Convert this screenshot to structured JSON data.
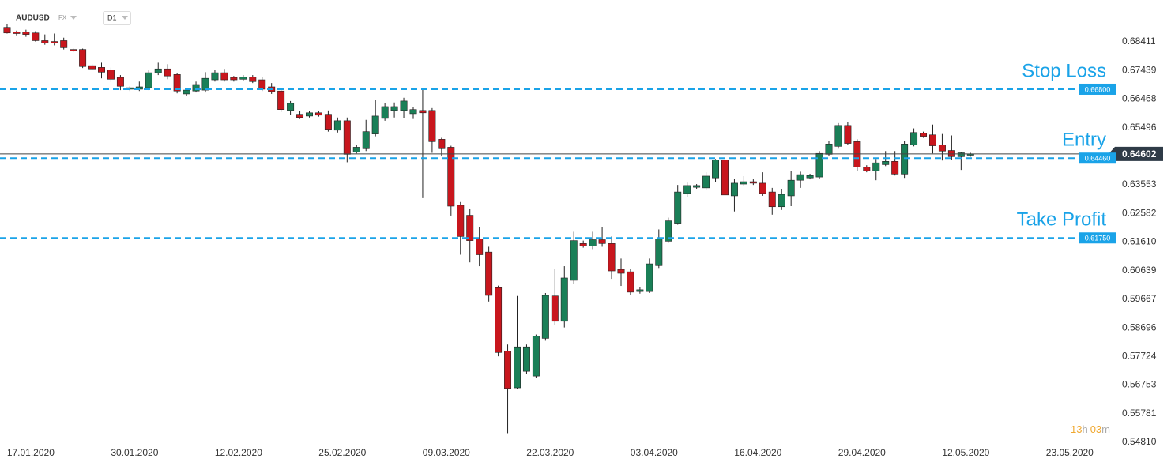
{
  "header": {
    "symbol": "AUDUSD",
    "market": "FX",
    "timeframe": "D1"
  },
  "chart_data": {
    "type": "candlestick",
    "open": [
      0.689,
      0.6874,
      0.6874,
      0.6871,
      0.6845,
      0.6842,
      0.6845,
      0.6815,
      0.6815,
      0.676,
      0.6754,
      0.6746,
      0.672,
      0.668,
      0.668,
      0.6685,
      0.6736,
      0.6749,
      0.673,
      0.6664,
      0.6674,
      0.6677,
      0.6712,
      0.6736,
      0.672,
      0.6714,
      0.6722,
      0.6712,
      0.6688,
      0.6674,
      0.6608,
      0.6595,
      0.6589,
      0.66,
      0.6595,
      0.6541,
      0.6573,
      0.6467,
      0.6478,
      0.6528,
      0.6581,
      0.6608,
      0.6608,
      0.6597,
      0.6608,
      0.6608,
      0.651,
      0.6483,
      0.6286,
      0.6252,
      0.6172,
      0.6127,
      0.6006,
      0.5791,
      0.5666,
      0.5722,
      0.5706,
      0.5834,
      0.5978,
      0.5892,
      0.6031,
      0.6156,
      0.6148,
      0.6169,
      0.6156,
      0.6068,
      0.606,
      0.5993,
      0.5993,
      0.6081,
      0.6164,
      0.6225,
      0.6326,
      0.6347,
      0.6345,
      0.6379,
      0.644,
      0.6318,
      0.6358,
      0.6366,
      0.6361,
      0.6331,
      0.6281,
      0.6318,
      0.6371,
      0.6379,
      0.6382,
      0.6459,
      0.6486,
      0.6557,
      0.6502,
      0.6416,
      0.6403,
      0.6424,
      0.6435,
      0.6392,
      0.6491,
      0.6531,
      0.6525,
      0.6491,
      0.6472,
      0.6451,
      0.6456
    ],
    "high": [
      0.6901,
      0.6879,
      0.6882,
      0.6877,
      0.6866,
      0.6869,
      0.6855,
      0.6818,
      0.6818,
      0.6765,
      0.677,
      0.6754,
      0.6728,
      0.669,
      0.6706,
      0.6744,
      0.677,
      0.6765,
      0.6736,
      0.6682,
      0.6706,
      0.6738,
      0.6746,
      0.6749,
      0.6725,
      0.6728,
      0.6728,
      0.6722,
      0.6701,
      0.6682,
      0.664,
      0.6605,
      0.6605,
      0.6605,
      0.6608,
      0.6584,
      0.6584,
      0.6491,
      0.6576,
      0.6643,
      0.6632,
      0.6635,
      0.6651,
      0.6619,
      0.6682,
      0.6616,
      0.6515,
      0.6488,
      0.6297,
      0.6275,
      0.6212,
      0.6145,
      0.6013,
      0.5813,
      0.5978,
      0.5813,
      0.5847,
      0.5988,
      0.6071,
      0.6079,
      0.6196,
      0.6166,
      0.6196,
      0.6212,
      0.618,
      0.6105,
      0.6071,
      0.6009,
      0.6105,
      0.6204,
      0.6244,
      0.6355,
      0.6363,
      0.6358,
      0.6398,
      0.6443,
      0.6443,
      0.6376,
      0.6385,
      0.6374,
      0.6398,
      0.6345,
      0.6342,
      0.6403,
      0.64,
      0.6393,
      0.647,
      0.6504,
      0.6565,
      0.6568,
      0.651,
      0.6422,
      0.6443,
      0.647,
      0.647,
      0.6504,
      0.6547,
      0.6536,
      0.656,
      0.6528,
      0.6523,
      0.6467,
      0.6464
    ],
    "low": [
      0.6869,
      0.6863,
      0.6858,
      0.6842,
      0.6831,
      0.6829,
      0.6815,
      0.6807,
      0.6752,
      0.6744,
      0.6717,
      0.6704,
      0.6677,
      0.6674,
      0.6674,
      0.6677,
      0.6728,
      0.6714,
      0.6666,
      0.6658,
      0.6669,
      0.6669,
      0.6706,
      0.6706,
      0.6706,
      0.6709,
      0.6701,
      0.6674,
      0.6664,
      0.6603,
      0.6592,
      0.6579,
      0.6584,
      0.6587,
      0.6536,
      0.6533,
      0.6432,
      0.6462,
      0.647,
      0.652,
      0.6573,
      0.6584,
      0.6581,
      0.6579,
      0.631,
      0.6464,
      0.6454,
      0.6251,
      0.6118,
      0.6092,
      0.6079,
      0.5959,
      0.5773,
      0.5512,
      0.5661,
      0.5712,
      0.5701,
      0.5826,
      0.5879,
      0.5871,
      0.602,
      0.6142,
      0.6137,
      0.6145,
      0.6036,
      0.6012,
      0.598,
      0.5986,
      0.5988,
      0.6073,
      0.6158,
      0.622,
      0.6313,
      0.6342,
      0.6337,
      0.6366,
      0.6281,
      0.6265,
      0.635,
      0.6355,
      0.6318,
      0.6254,
      0.627,
      0.6283,
      0.6345,
      0.6374,
      0.6376,
      0.6454,
      0.6478,
      0.6491,
      0.6403,
      0.6398,
      0.6371,
      0.6419,
      0.6387,
      0.6379,
      0.6486,
      0.6515,
      0.6462,
      0.6438,
      0.644,
      0.6406,
      0.6451
    ],
    "close": [
      0.6871,
      0.6869,
      0.6866,
      0.6845,
      0.6837,
      0.6837,
      0.6821,
      0.681,
      0.6757,
      0.6749,
      0.6738,
      0.6714,
      0.669,
      0.6685,
      0.6688,
      0.6736,
      0.6749,
      0.6725,
      0.6674,
      0.6677,
      0.6696,
      0.6717,
      0.6736,
      0.6712,
      0.6712,
      0.6722,
      0.6706,
      0.668,
      0.6672,
      0.6611,
      0.6632,
      0.6584,
      0.66,
      0.6592,
      0.6544,
      0.6573,
      0.6459,
      0.6483,
      0.6536,
      0.6589,
      0.6621,
      0.6621,
      0.664,
      0.6611,
      0.66,
      0.6502,
      0.6478,
      0.6283,
      0.618,
      0.6166,
      0.6118,
      0.598,
      0.5786,
      0.5664,
      0.5805,
      0.5805,
      0.5842,
      0.598,
      0.5892,
      0.6039,
      0.6166,
      0.6148,
      0.6169,
      0.6156,
      0.6063,
      0.6055,
      0.5991,
      0.5999,
      0.6087,
      0.6172,
      0.6233,
      0.6331,
      0.6353,
      0.6353,
      0.6385,
      0.644,
      0.6321,
      0.6361,
      0.6366,
      0.6361,
      0.6326,
      0.6281,
      0.6323,
      0.6371,
      0.639,
      0.6387,
      0.6462,
      0.6494,
      0.6557,
      0.6496,
      0.6416,
      0.6403,
      0.643,
      0.6435,
      0.6392,
      0.6494,
      0.6533,
      0.652,
      0.6488,
      0.647,
      0.6451,
      0.6464,
      0.646
    ],
    "up_color": "#1a7f57",
    "down_color": "#c8161d",
    "xlim": [
      -0.75,
      117.2
    ],
    "xticks": [
      {
        "value": 2.5,
        "label": "17.01.2020"
      },
      {
        "value": 13.5,
        "label": "30.01.2020"
      },
      {
        "value": 24.5,
        "label": "12.02.2020"
      },
      {
        "value": 35.5,
        "label": "25.02.2020"
      },
      {
        "value": 46.5,
        "label": "09.03.2020"
      },
      {
        "value": 57.5,
        "label": "22.03.2020"
      },
      {
        "value": 68.5,
        "label": "03.04.2020"
      },
      {
        "value": 79.5,
        "label": "16.04.2020"
      },
      {
        "value": 90.5,
        "label": "29.04.2020"
      },
      {
        "value": 101.5,
        "label": "12.05.2020"
      },
      {
        "value": 112.5,
        "label": "23.05.2020"
      }
    ],
    "ylim": [
      0.5473,
      0.6983
    ],
    "yticks": [
      0.68411,
      0.67439,
      0.66468,
      0.65496,
      0.63553,
      0.62582,
      {
        "value": 0.6161,
        "label": "0.61610"
      },
      0.60639,
      0.59667,
      0.58696,
      0.57724,
      0.56753,
      0.55781,
      {
        "value": 0.5481,
        "label": "0.54810"
      }
    ],
    "grid": false,
    "levels": [
      {
        "name": "Stop Loss",
        "price": {
          "value": 0.668,
          "label": "0.66800"
        },
        "color": "#1aa3e8"
      },
      {
        "name": "Entry",
        "price": {
          "value": 0.6446,
          "label": "0.64460"
        },
        "color": "#1aa3e8"
      },
      {
        "name": "Take Profit",
        "price": {
          "value": 0.6175,
          "label": "0.61750"
        },
        "color": "#1aa3e8"
      }
    ],
    "last_price": {
      "value": 0.64602,
      "label": "0.64602"
    },
    "countdown": [
      "13",
      "h",
      "03",
      "m"
    ]
  }
}
